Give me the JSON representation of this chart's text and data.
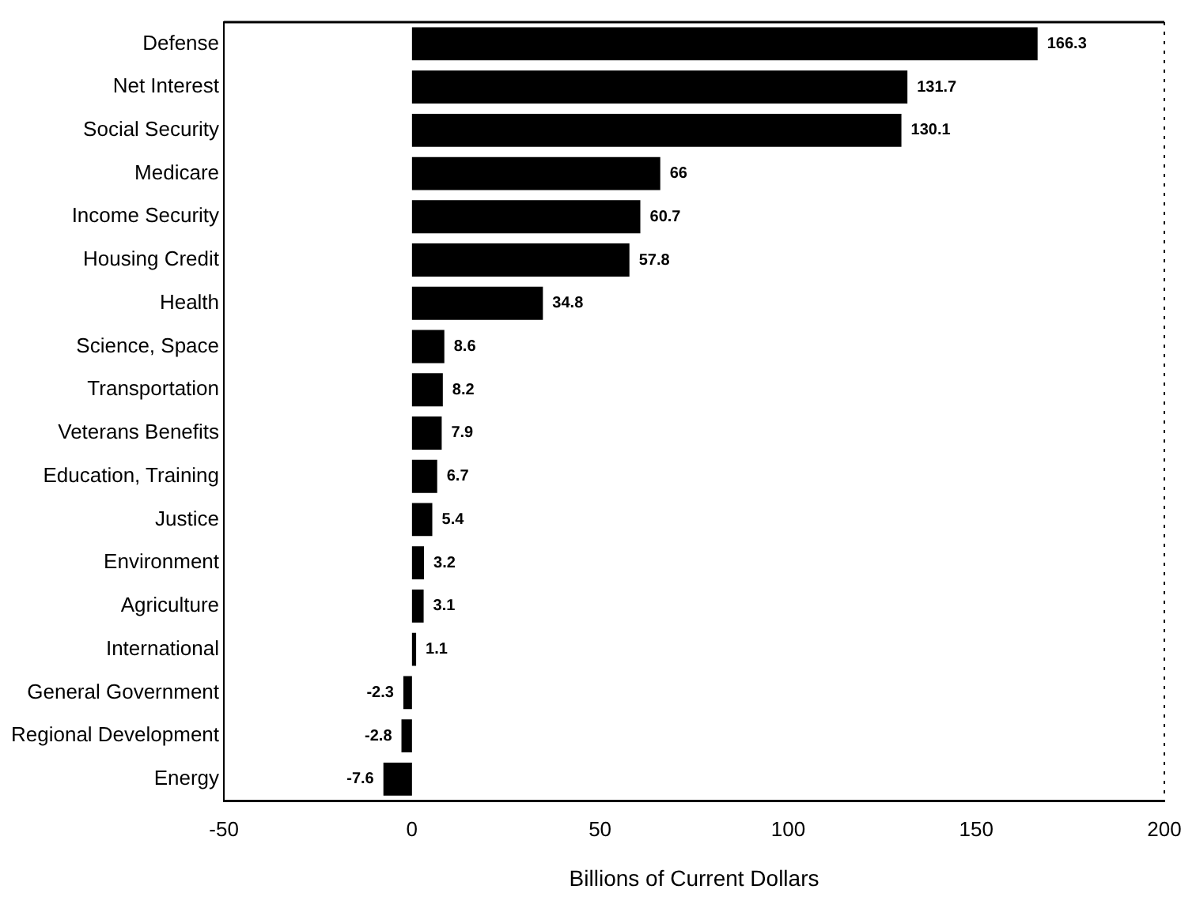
{
  "chart_data": {
    "type": "bar",
    "orientation": "horizontal",
    "xlabel": "Billions of Current Dollars",
    "categories": [
      "Defense",
      "Net Interest",
      "Social Security",
      "Medicare",
      "Income Security",
      "Housing Credit",
      "Health",
      "Science, Space",
      "Transportation",
      "Veterans Benefits",
      "Education, Training",
      "Justice",
      "Environment",
      "Agriculture",
      "International",
      "General Government",
      "Regional Development",
      "Energy"
    ],
    "values": [
      166.3,
      131.7,
      130.1,
      66,
      60.7,
      57.8,
      34.8,
      8.6,
      8.2,
      7.9,
      6.7,
      5.4,
      3.2,
      3.1,
      1.1,
      -2.3,
      -2.8,
      -7.6
    ],
    "value_labels": [
      "166.3",
      "131.7",
      "130.1",
      "66",
      "60.7",
      "57.8",
      "34.8",
      "8.6",
      "8.2",
      "7.9",
      "6.7",
      "5.4",
      "3.2",
      "3.1",
      "1.1",
      "-2.3",
      "-2.8",
      "-7.6"
    ],
    "color": "#000000",
    "xlim": [
      -50,
      200
    ],
    "xticks": [
      -50,
      0,
      50,
      100,
      150,
      200
    ],
    "grid": false,
    "legend": false
  }
}
